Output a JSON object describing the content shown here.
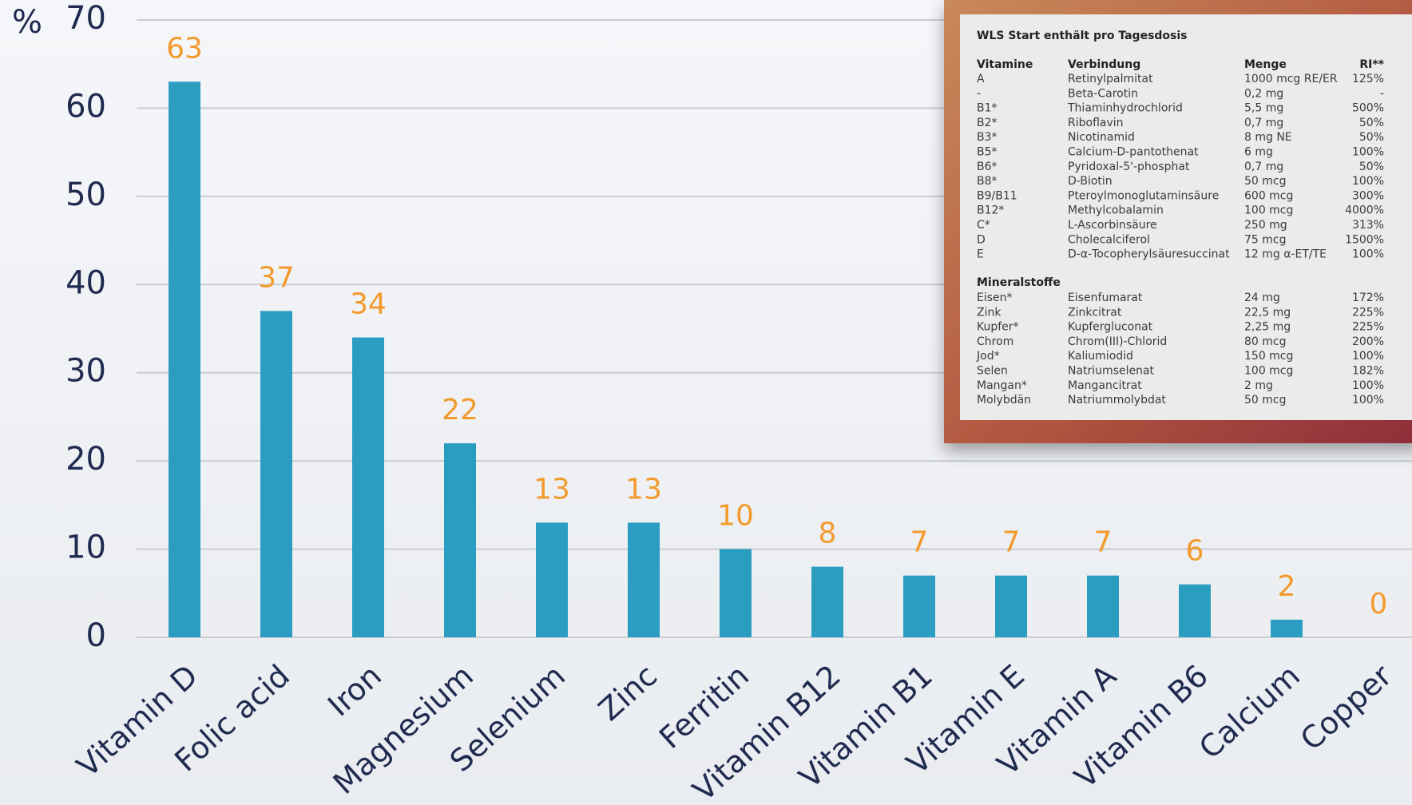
{
  "chart_data": {
    "type": "bar",
    "y_axis_label": "%",
    "categories": [
      "Vitamin D",
      "Folic acid",
      "Iron",
      "Magnesium",
      "Selenium",
      "Zinc",
      "Ferritin",
      "Vitamin B12",
      "Vitamin B1",
      "Vitamin E",
      "Vitamin A",
      "Vitamin B6",
      "Calcium",
      "Copper"
    ],
    "values": [
      63,
      37,
      34,
      22,
      13,
      13,
      10,
      8,
      7,
      7,
      7,
      6,
      2,
      0
    ],
    "color": "#2b9dc1",
    "label_color": "#f39a2c",
    "ylim": [
      0,
      70
    ],
    "yticks": [
      0,
      10,
      20,
      30,
      40,
      50,
      60,
      70
    ],
    "grid": true
  },
  "inset": {
    "title": "WLS Start enthält pro Tagesdosis",
    "header": [
      "Vitamine",
      "Verbindung",
      "Menge",
      "RI**"
    ],
    "vitamin_rows": [
      [
        "A",
        "Retinylpalmitat",
        "1000 mcg RE/ER",
        "125%"
      ],
      [
        "-",
        "Beta-Carotin",
        "0,2 mg",
        "-"
      ],
      [
        "B1*",
        "Thiaminhydrochlorid",
        "5,5 mg",
        "500%"
      ],
      [
        "B2*",
        "Riboflavin",
        "0,7 mg",
        "50%"
      ],
      [
        "B3*",
        "Nicotinamid",
        "8 mg NE",
        "50%"
      ],
      [
        "B5*",
        "Calcium-D-pantothenat",
        "6 mg",
        "100%"
      ],
      [
        "B6*",
        "Pyridoxal-5'-phosphat",
        "0,7 mg",
        "50%"
      ],
      [
        "B8*",
        "D-Biotin",
        "50 mcg",
        "100%"
      ],
      [
        "B9/B11",
        "Pteroylmonoglutaminsäure",
        "600 mcg",
        "300%"
      ],
      [
        "B12*",
        "Methylcobalamin",
        "100 mcg",
        "4000%"
      ],
      [
        "C*",
        "L-Ascorbinsäure",
        "250 mg",
        "313%"
      ],
      [
        "D",
        "Cholecalciferol",
        "75 mcg",
        "1500%"
      ],
      [
        "E",
        "D-α-Tocopherylsäuresuccinat",
        "12 mg α-ET/TE",
        "100%"
      ]
    ],
    "minerals_label": "Mineralstoffe",
    "mineral_rows": [
      [
        "Eisen*",
        "Eisenfumarat",
        "24 mg",
        "172%"
      ],
      [
        "Zink",
        "Zinkcitrat",
        "22,5 mg",
        "225%"
      ],
      [
        "Kupfer*",
        "Kupfergluconat",
        "2,25 mg",
        "225%"
      ],
      [
        "Chrom",
        "Chrom(III)-Chlorid",
        "80 mcg",
        "200%"
      ],
      [
        "Jod*",
        "Kaliumiodid",
        "150 mcg",
        "100%"
      ],
      [
        "Selen",
        "Natriumselenat",
        "100 mcg",
        "182%"
      ],
      [
        "Mangan*",
        "Mangancitrat",
        "2 mg",
        "100%"
      ],
      [
        "Molybdän",
        "Natriummolybdat",
        "50 mcg",
        "100%"
      ]
    ]
  }
}
